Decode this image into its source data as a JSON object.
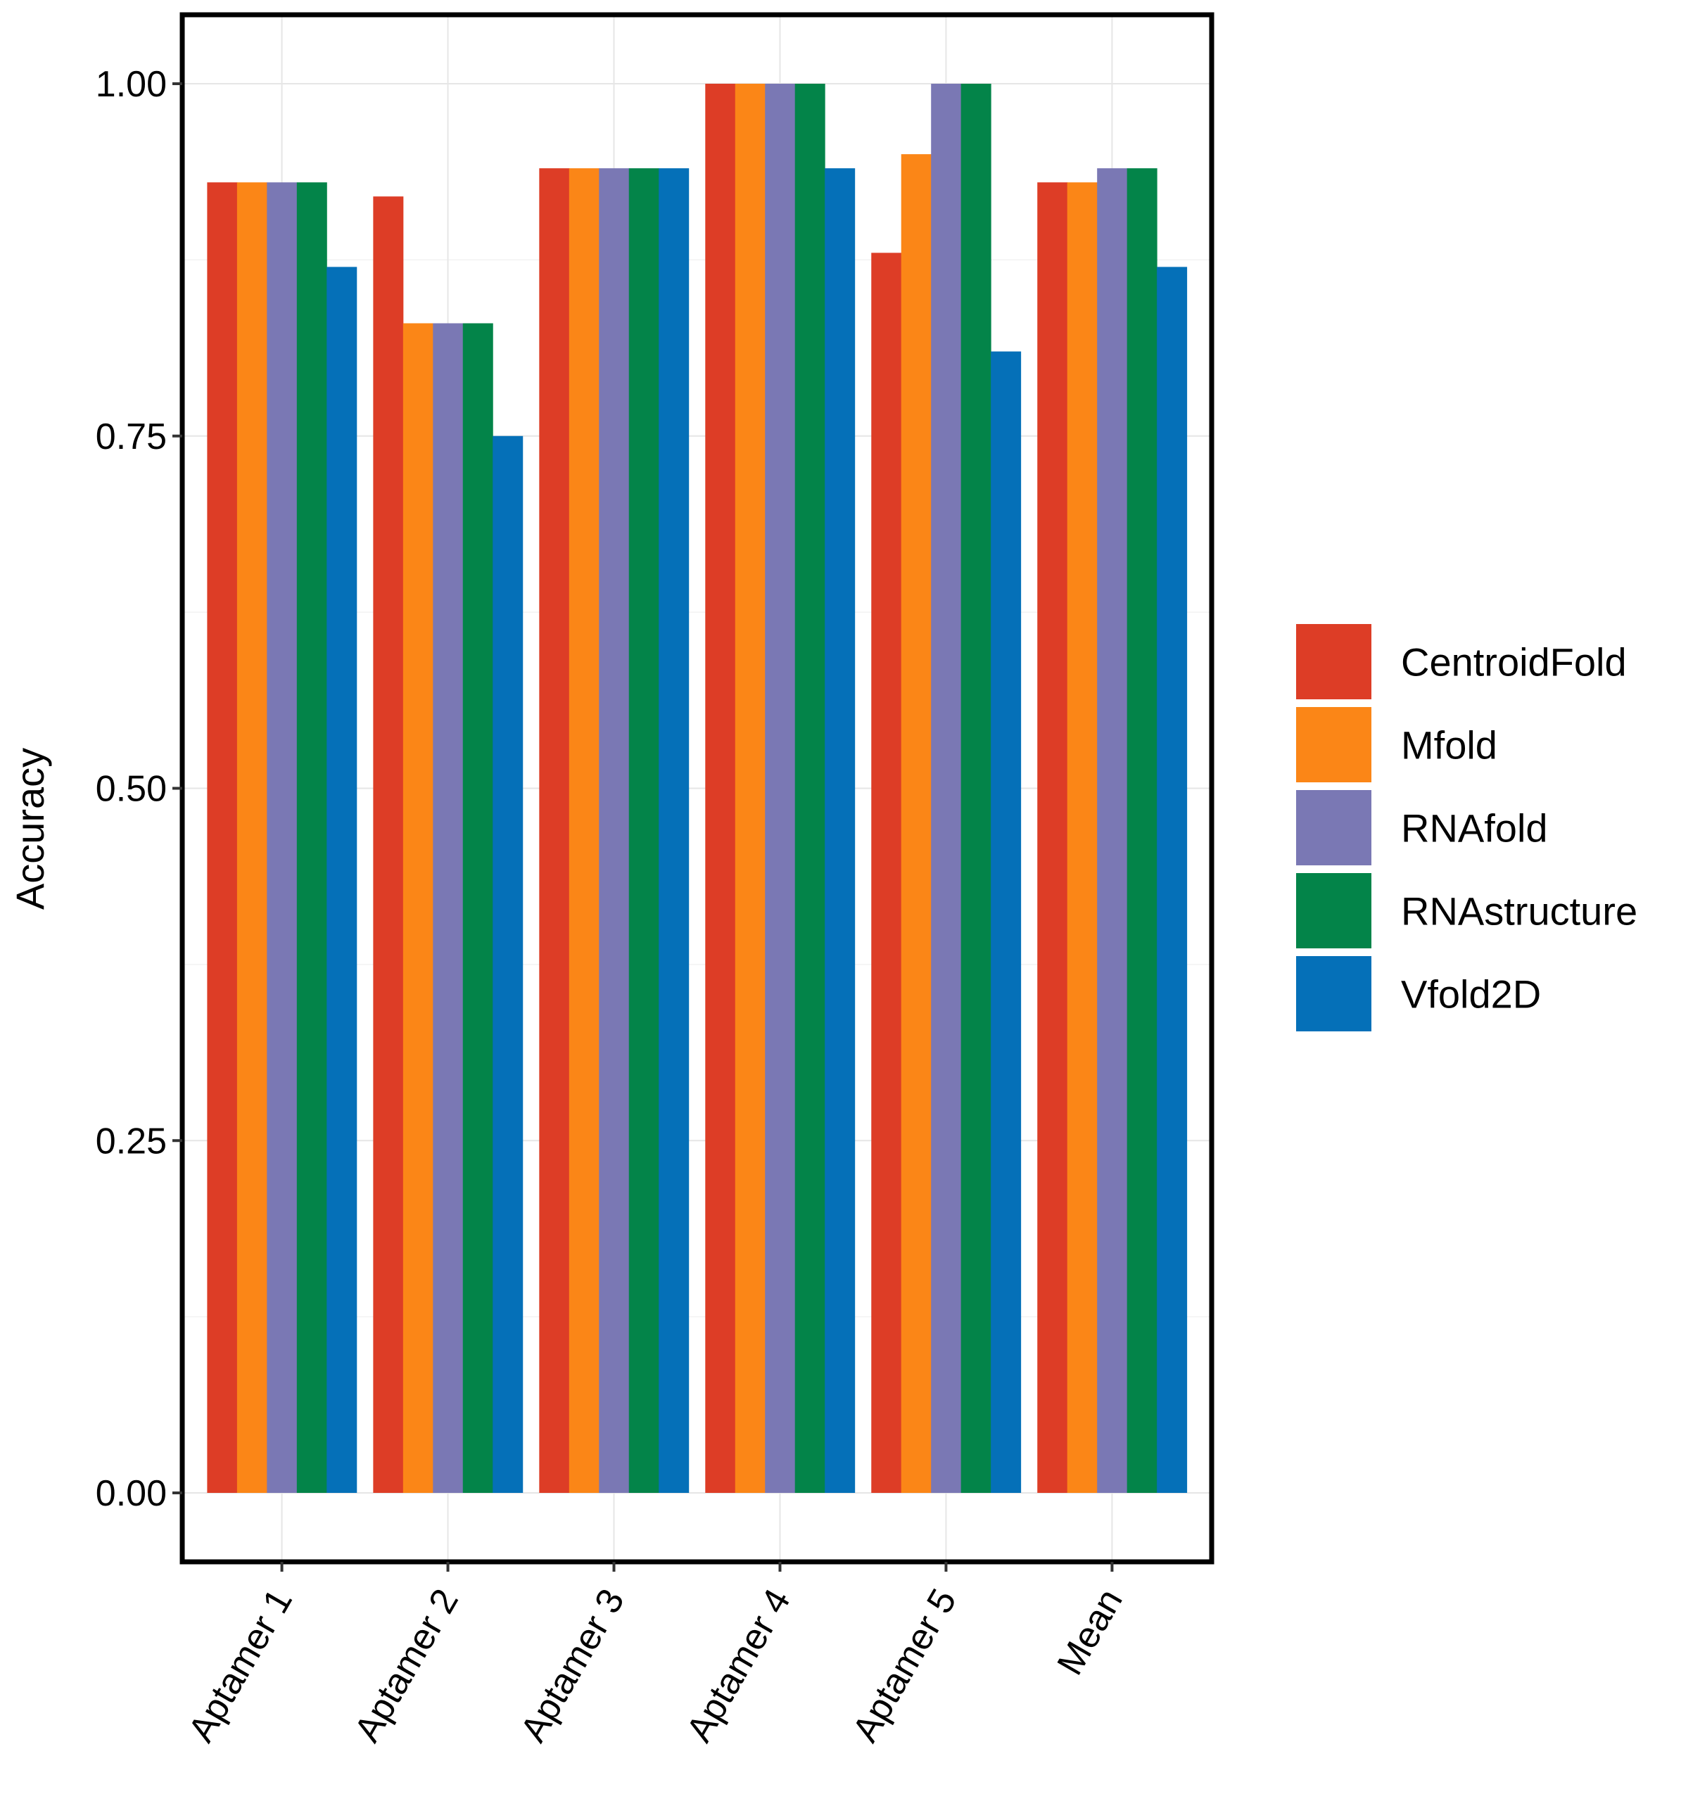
{
  "chart_data": {
    "type": "bar",
    "title": "",
    "xlabel": "",
    "ylabel": "Accuracy",
    "ylim": [
      -0.05,
      1.05
    ],
    "yticks": [
      0.0,
      0.25,
      0.5,
      0.75,
      1.0
    ],
    "ytick_labels": [
      "0.00",
      "0.25",
      "0.50",
      "0.75",
      "1.00"
    ],
    "grid": true,
    "legend_position": "right",
    "categories": [
      "Aptamer 1",
      "Aptamer 2",
      "Aptamer 3",
      "Aptamer 4",
      "Aptamer 5",
      "Mean"
    ],
    "series": [
      {
        "name": "CentroidFold",
        "color": "#DD3D26",
        "values": [
          0.93,
          0.92,
          0.94,
          1.0,
          0.88,
          0.93
        ]
      },
      {
        "name": "Mfold",
        "color": "#FB8617",
        "values": [
          0.93,
          0.83,
          0.94,
          1.0,
          0.95,
          0.93
        ]
      },
      {
        "name": "RNAfold",
        "color": "#7A78B4",
        "values": [
          0.93,
          0.83,
          0.94,
          1.0,
          1.0,
          0.94
        ]
      },
      {
        "name": "RNAstructure",
        "color": "#038449",
        "values": [
          0.93,
          0.83,
          0.94,
          1.0,
          1.0,
          0.94
        ]
      },
      {
        "name": "Vfold2D",
        "color": "#0570B8",
        "values": [
          0.87,
          0.75,
          0.94,
          0.94,
          0.81,
          0.87
        ]
      }
    ]
  }
}
